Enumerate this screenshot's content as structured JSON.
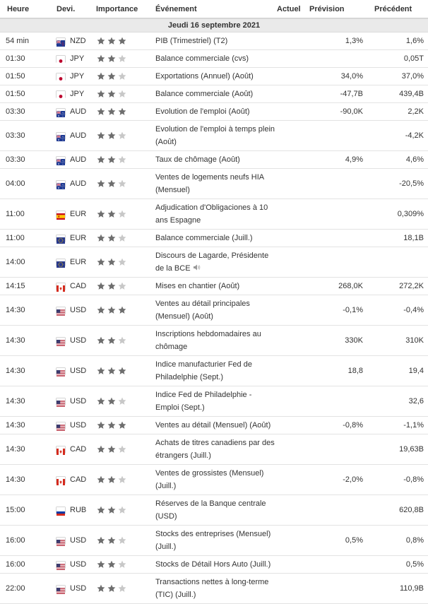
{
  "header": {
    "time": "Heure",
    "currency": "Devi.",
    "importance": "Importance",
    "event": "Événement",
    "actual": "Actuel",
    "forecast": "Prévision",
    "previous": "Précédent"
  },
  "date_label": "Jeudi 16 septembre 2021",
  "colors": {
    "star_filled": "#6e6e6e",
    "star_empty": "#c8c8c8",
    "date_bg": "#eaeaea"
  },
  "events": [
    {
      "time": "54 min",
      "currency": "NZD",
      "flag": "nz",
      "stars": 3,
      "event": "PIB (Trimestriel) (T2)",
      "actual": "",
      "forecast": "1,3%",
      "previous": "1,6%"
    },
    {
      "time": "01:30",
      "currency": "JPY",
      "flag": "jp",
      "stars": 2,
      "event": "Balance commerciale (cvs)",
      "actual": "",
      "forecast": "",
      "previous": "0,05T"
    },
    {
      "time": "01:50",
      "currency": "JPY",
      "flag": "jp",
      "stars": 2,
      "event": "Exportations (Annuel) (Août)",
      "actual": "",
      "forecast": "34,0%",
      "previous": "37,0%"
    },
    {
      "time": "01:50",
      "currency": "JPY",
      "flag": "jp",
      "stars": 2,
      "event": "Balance commerciale (Août)",
      "actual": "",
      "forecast": "-47,7B",
      "previous": "439,4B"
    },
    {
      "time": "03:30",
      "currency": "AUD",
      "flag": "au",
      "stars": 3,
      "event": "Evolution de l'emploi (Août)",
      "actual": "",
      "forecast": "-90,0K",
      "previous": "2,2K"
    },
    {
      "time": "03:30",
      "currency": "AUD",
      "flag": "au",
      "stars": 2,
      "event": "Evolution de l'emploi à temps plein (Août)",
      "actual": "",
      "forecast": "",
      "previous": "-4,2K"
    },
    {
      "time": "03:30",
      "currency": "AUD",
      "flag": "au",
      "stars": 2,
      "event": "Taux de chômage (Août)",
      "actual": "",
      "forecast": "4,9%",
      "previous": "4,6%"
    },
    {
      "time": "04:00",
      "currency": "AUD",
      "flag": "au",
      "stars": 2,
      "event": "Ventes de logements neufs HIA (Mensuel)",
      "actual": "",
      "forecast": "",
      "previous": "-20,5%"
    },
    {
      "time": "11:00",
      "currency": "EUR",
      "flag": "es",
      "stars": 2,
      "event": "Adjudication d'Obligaciones à 10 ans Espagne",
      "actual": "",
      "forecast": "",
      "previous": "0,309%"
    },
    {
      "time": "11:00",
      "currency": "EUR",
      "flag": "eu",
      "stars": 2,
      "event": "Balance commerciale (Juill.)",
      "actual": "",
      "forecast": "",
      "previous": "18,1B"
    },
    {
      "time": "14:00",
      "currency": "EUR",
      "flag": "eu",
      "stars": 2,
      "event": "Discours de Lagarde, Présidente de la BCE",
      "speech": true,
      "actual": "",
      "forecast": "",
      "previous": ""
    },
    {
      "time": "14:15",
      "currency": "CAD",
      "flag": "ca",
      "stars": 2,
      "event": "Mises en chantier (Août)",
      "actual": "",
      "forecast": "268,0K",
      "previous": "272,2K"
    },
    {
      "time": "14:30",
      "currency": "USD",
      "flag": "us",
      "stars": 3,
      "event": "Ventes au détail principales (Mensuel) (Août)",
      "actual": "",
      "forecast": "-0,1%",
      "previous": "-0,4%"
    },
    {
      "time": "14:30",
      "currency": "USD",
      "flag": "us",
      "stars": 2,
      "event": "Inscriptions hebdomadaires au chômage",
      "actual": "",
      "forecast": "330K",
      "previous": "310K"
    },
    {
      "time": "14:30",
      "currency": "USD",
      "flag": "us",
      "stars": 3,
      "event": "Indice manufacturier Fed de Philadelphie (Sept.)",
      "actual": "",
      "forecast": "18,8",
      "previous": "19,4"
    },
    {
      "time": "14:30",
      "currency": "USD",
      "flag": "us",
      "stars": 2,
      "event": "Indice Fed de Philadelphie - Emploi (Sept.)",
      "actual": "",
      "forecast": "",
      "previous": "32,6"
    },
    {
      "time": "14:30",
      "currency": "USD",
      "flag": "us",
      "stars": 3,
      "event": "Ventes au détail (Mensuel) (Août)",
      "actual": "",
      "forecast": "-0,8%",
      "previous": "-1,1%"
    },
    {
      "time": "14:30",
      "currency": "CAD",
      "flag": "ca",
      "stars": 2,
      "event": "Achats de titres canadiens par des étrangers (Juill.)",
      "actual": "",
      "forecast": "",
      "previous": "19,63B"
    },
    {
      "time": "14:30",
      "currency": "CAD",
      "flag": "ca",
      "stars": 2,
      "event": "Ventes de grossistes (Mensuel) (Juill.)",
      "actual": "",
      "forecast": "-2,0%",
      "previous": "-0,8%"
    },
    {
      "time": "15:00",
      "currency": "RUB",
      "flag": "ru",
      "stars": 2,
      "event": "Réserves de la Banque centrale (USD)",
      "actual": "",
      "forecast": "",
      "previous": "620,8B"
    },
    {
      "time": "16:00",
      "currency": "USD",
      "flag": "us",
      "stars": 2,
      "event": "Stocks des entreprises (Mensuel) (Juill.)",
      "actual": "",
      "forecast": "0,5%",
      "previous": "0,8%"
    },
    {
      "time": "16:00",
      "currency": "USD",
      "flag": "us",
      "stars": 2,
      "event": "Stocks de Détail Hors Auto (Juill.)",
      "actual": "",
      "forecast": "",
      "previous": "0,5%"
    },
    {
      "time": "22:00",
      "currency": "USD",
      "flag": "us",
      "stars": 2,
      "event": "Transactions nettes à long-terme (TIC) (Juill.)",
      "actual": "",
      "forecast": "",
      "previous": "110,9B"
    }
  ]
}
